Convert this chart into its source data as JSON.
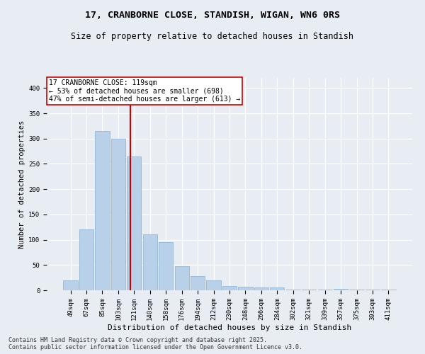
{
  "title": "17, CRANBORNE CLOSE, STANDISH, WIGAN, WN6 0RS",
  "subtitle": "Size of property relative to detached houses in Standish",
  "xlabel": "Distribution of detached houses by size in Standish",
  "ylabel": "Number of detached properties",
  "categories": [
    "49sqm",
    "67sqm",
    "85sqm",
    "103sqm",
    "121sqm",
    "140sqm",
    "158sqm",
    "176sqm",
    "194sqm",
    "212sqm",
    "230sqm",
    "248sqm",
    "266sqm",
    "284sqm",
    "302sqm",
    "321sqm",
    "339sqm",
    "357sqm",
    "375sqm",
    "393sqm",
    "411sqm"
  ],
  "values": [
    20,
    120,
    315,
    300,
    265,
    110,
    95,
    47,
    28,
    20,
    8,
    7,
    5,
    5,
    2,
    2,
    2,
    3,
    1,
    1,
    1
  ],
  "bar_color": "#b8d0e8",
  "bar_edgecolor": "#8ab0d0",
  "vline_x": 3.78,
  "vline_color": "#cc0000",
  "annotation_text": "17 CRANBORNE CLOSE: 119sqm\n← 53% of detached houses are smaller (698)\n47% of semi-detached houses are larger (613) →",
  "annotation_box_color": "#ffffff",
  "annotation_box_edgecolor": "#cc0000",
  "background_color": "#e8edf4",
  "plot_background": "#e8edf4",
  "grid_color": "#ffffff",
  "ylim": [
    0,
    420
  ],
  "yticks": [
    0,
    50,
    100,
    150,
    200,
    250,
    300,
    350,
    400
  ],
  "footer": "Contains HM Land Registry data © Crown copyright and database right 2025.\nContains public sector information licensed under the Open Government Licence v3.0.",
  "title_fontsize": 9.5,
  "subtitle_fontsize": 8.5,
  "xlabel_fontsize": 8,
  "ylabel_fontsize": 7.5,
  "tick_fontsize": 6.5,
  "annotation_fontsize": 7,
  "footer_fontsize": 6
}
